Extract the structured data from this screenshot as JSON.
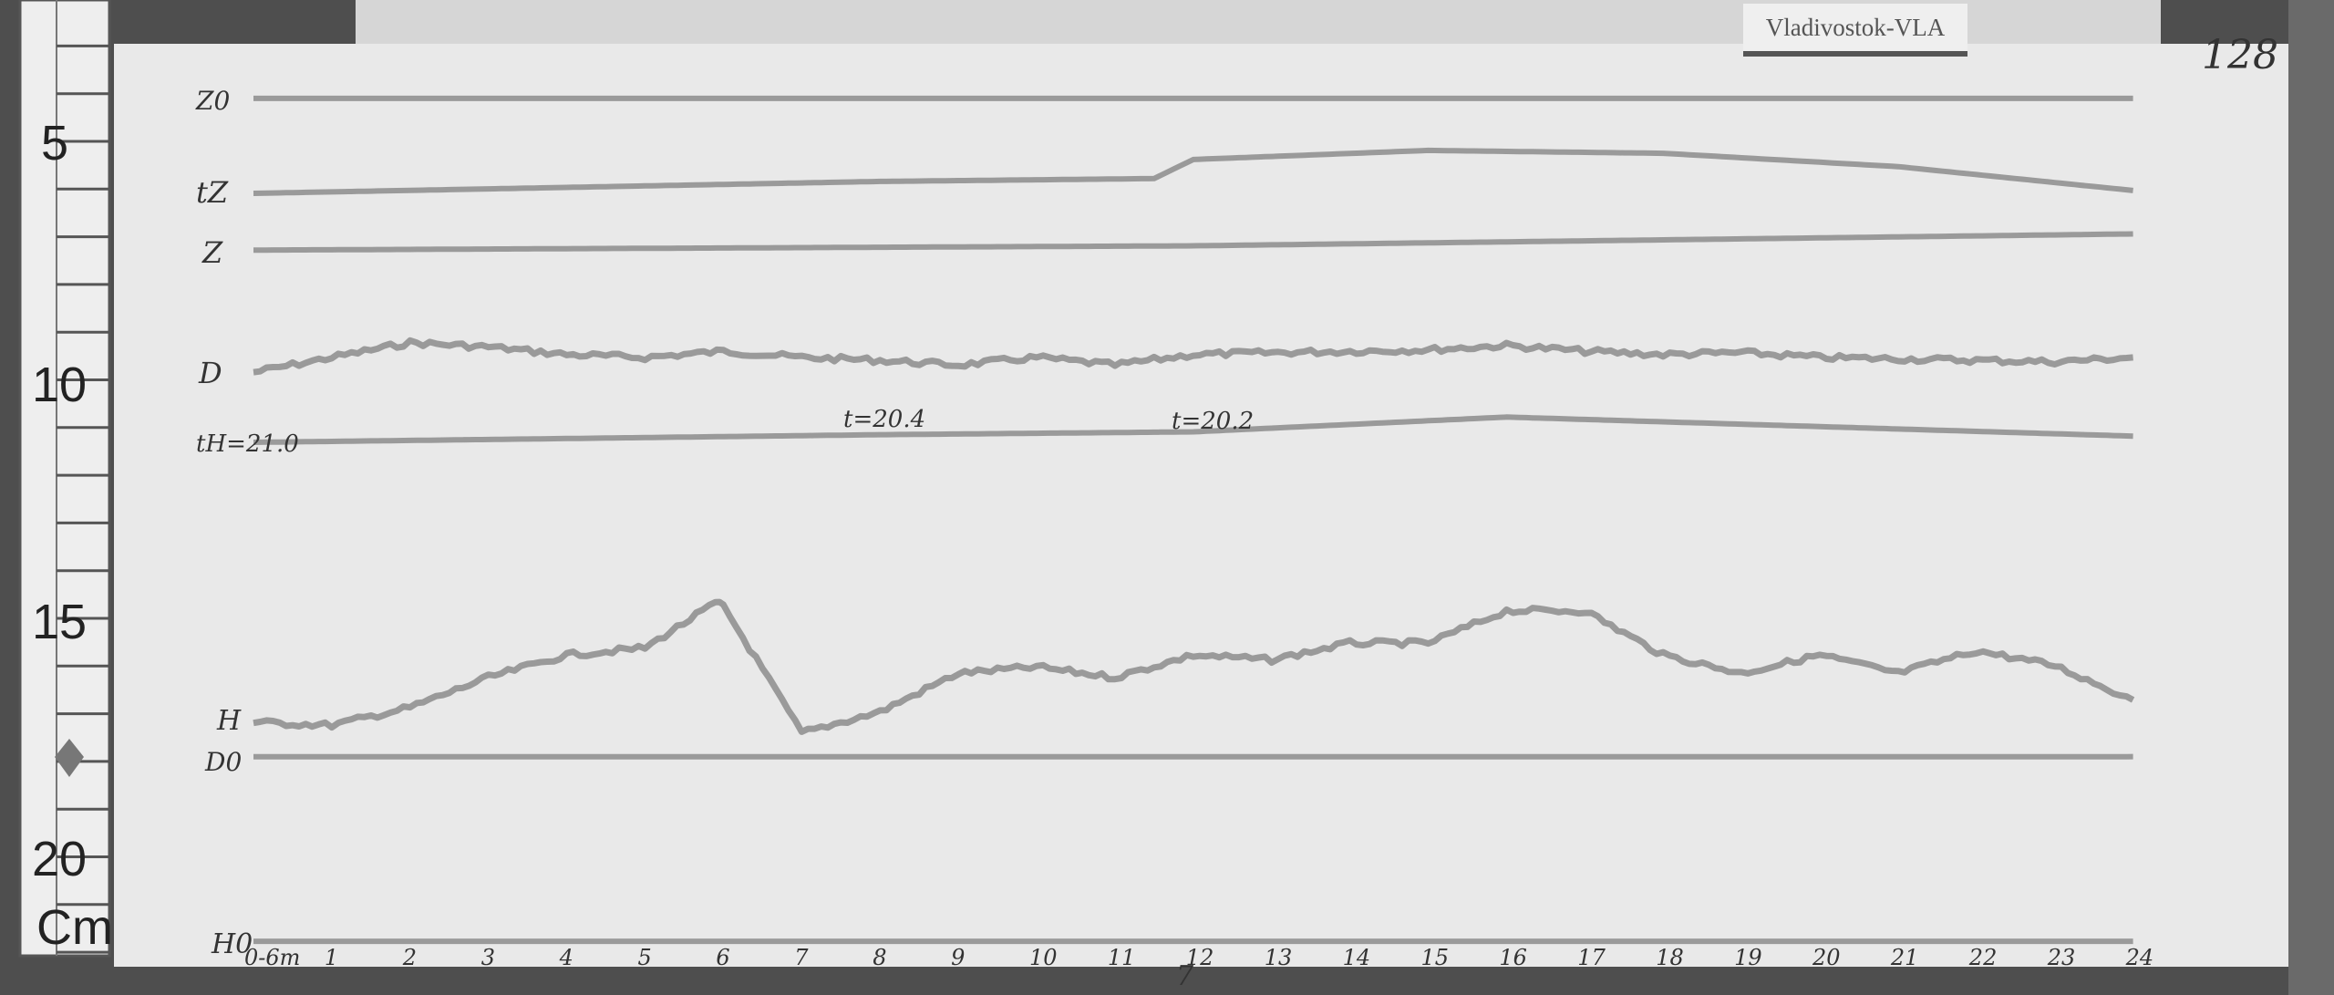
{
  "station_label": "Vladivostok-VLA",
  "sheet_number": "128",
  "ruler": {
    "unit": "Cm",
    "marks": [
      "5",
      "10",
      "15",
      "20"
    ]
  },
  "trace_labels": {
    "z0": "Z0",
    "tz": "tZ",
    "z": "Z",
    "d": "D",
    "th": "tH=21.0",
    "h": "H",
    "d0": "D0",
    "h0": "H0"
  },
  "annotations": {
    "t1": "t=20.4",
    "t2": "t=20.2",
    "date_day": "7"
  },
  "colors": {
    "paper": "#e9e9e9",
    "trace": "#9a9a9a",
    "ink": "#333333"
  },
  "chart_data": {
    "type": "line",
    "xlabel": "",
    "ylabel": "",
    "x_unit_ticks": [
      "0-6m",
      "1",
      "2",
      "3",
      "4",
      "5",
      "6",
      "7",
      "8",
      "9",
      "10",
      "11",
      "12",
      "13",
      "14",
      "15",
      "16",
      "17",
      "18",
      "19",
      "20",
      "21",
      "22",
      "23",
      "24"
    ],
    "xlim": [
      0,
      24
    ],
    "y_axis": "ruler position in cm (inverted, 5 at top, 20 at bottom)",
    "ylim": [
      3,
      22
    ],
    "grid": false,
    "series": [
      {
        "name": "Z0",
        "x": [
          0,
          24
        ],
        "y": [
          4.1,
          4.1
        ]
      },
      {
        "name": "tZ",
        "x": [
          0,
          8,
          11.5,
          12,
          15,
          18,
          21,
          24
        ],
        "y": [
          6.09,
          5.84,
          5.78,
          5.38,
          5.19,
          5.25,
          5.53,
          6.03
        ]
      },
      {
        "name": "Z",
        "x": [
          0,
          12,
          24
        ],
        "y": [
          7.28,
          7.19,
          6.94
        ]
      },
      {
        "name": "D",
        "x": [
          0,
          1,
          2,
          3,
          4,
          5,
          6,
          7,
          8,
          9,
          10,
          11,
          12,
          13,
          14,
          15,
          16,
          17,
          18,
          19,
          20,
          21,
          22,
          23,
          24
        ],
        "y": [
          9.84,
          9.53,
          9.22,
          9.31,
          9.47,
          9.53,
          9.4,
          9.53,
          9.59,
          9.69,
          9.53,
          9.69,
          9.47,
          9.43,
          9.4,
          9.37,
          9.28,
          9.4,
          9.47,
          9.43,
          9.53,
          9.56,
          9.59,
          9.62,
          9.53
        ]
      },
      {
        "name": "tH",
        "x": [
          0,
          8,
          12,
          16,
          24
        ],
        "y": [
          11.31,
          11.15,
          11.09,
          10.78,
          11.18
        ]
      },
      {
        "name": "H",
        "x": [
          0,
          1,
          2,
          3,
          4,
          5,
          5.9,
          6,
          7,
          8,
          9,
          10,
          11,
          12,
          13,
          14,
          15,
          16,
          17,
          18,
          19,
          20,
          21,
          22,
          23,
          24
        ],
        "y": [
          17.18,
          17.24,
          16.87,
          16.24,
          15.77,
          15.62,
          14.68,
          14.74,
          17.4,
          16.96,
          16.15,
          16.02,
          16.24,
          15.77,
          15.87,
          15.52,
          15.52,
          14.84,
          14.84,
          15.77,
          16.15,
          15.77,
          16.15,
          15.68,
          15.99,
          16.71
        ]
      },
      {
        "name": "D0",
        "x": [
          0,
          24
        ],
        "y": [
          17.9,
          17.9
        ]
      },
      {
        "name": "H0",
        "x": [
          0,
          24
        ],
        "y": [
          21.77,
          21.77
        ]
      }
    ]
  }
}
